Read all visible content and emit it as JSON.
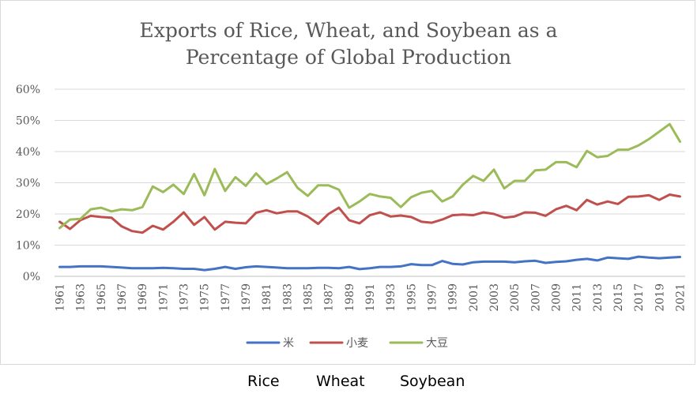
{
  "chart_data": {
    "type": "line",
    "title_lines": [
      "Exports of Rice, Wheat, and Soybean as a",
      "Percentage of Global Production"
    ],
    "y_ticks": [
      "0%",
      "10%",
      "20%",
      "30%",
      "40%",
      "50%",
      "60%"
    ],
    "ylim": [
      0,
      60
    ],
    "grid": true,
    "legend_position": "bottom",
    "x_tick_labels": [
      "1961",
      "1963",
      "1965",
      "1967",
      "1969",
      "1971",
      "1973",
      "1975",
      "1977",
      "1979",
      "1981",
      "1983",
      "1985",
      "1987",
      "1989",
      "1991",
      "1993",
      "1995",
      "1997",
      "1999",
      "2001",
      "2003",
      "2005",
      "2007",
      "2009",
      "2011",
      "2013",
      "2015",
      "2017",
      "2019",
      "2021"
    ],
    "x": [
      1961,
      1962,
      1963,
      1964,
      1965,
      1966,
      1967,
      1968,
      1969,
      1970,
      1971,
      1972,
      1973,
      1974,
      1975,
      1976,
      1977,
      1978,
      1979,
      1980,
      1981,
      1982,
      1983,
      1984,
      1985,
      1986,
      1987,
      1988,
      1989,
      1990,
      1991,
      1992,
      1993,
      1994,
      1995,
      1996,
      1997,
      1998,
      1999,
      2000,
      2001,
      2002,
      2003,
      2004,
      2005,
      2006,
      2007,
      2008,
      2009,
      2010,
      2011,
      2012,
      2013,
      2014,
      2015,
      2016,
      2017,
      2018,
      2019,
      2020,
      2021
    ],
    "series": [
      {
        "name": "米",
        "color": "#4472c4",
        "values": [
          3.0,
          3.0,
          3.2,
          3.2,
          3.2,
          3.0,
          2.8,
          2.6,
          2.6,
          2.6,
          2.7,
          2.6,
          2.4,
          2.4,
          2.0,
          2.4,
          3.0,
          2.4,
          2.9,
          3.2,
          3.0,
          2.8,
          2.6,
          2.6,
          2.6,
          2.7,
          2.7,
          2.6,
          3.0,
          2.3,
          2.6,
          3.0,
          3.0,
          3.2,
          3.9,
          3.6,
          3.6,
          4.9,
          4.0,
          3.8,
          4.5,
          4.7,
          4.7,
          4.7,
          4.5,
          4.8,
          5.0,
          4.3,
          4.6,
          4.8,
          5.3,
          5.6,
          5.1,
          6.0,
          5.8,
          5.6,
          6.3,
          6.0,
          5.8,
          6.0,
          6.2
        ]
      },
      {
        "name": "小麦",
        "color": "#c0504d",
        "values": [
          17.5,
          15.2,
          18.0,
          19.4,
          19.0,
          18.8,
          16.0,
          14.5,
          14.0,
          16.2,
          15.0,
          17.5,
          20.5,
          16.5,
          19.0,
          15.0,
          17.5,
          17.2,
          17.0,
          20.4,
          21.2,
          20.2,
          20.8,
          20.8,
          19.2,
          16.8,
          20.0,
          22.0,
          18.0,
          17.0,
          19.6,
          20.5,
          19.2,
          19.5,
          19.0,
          17.5,
          17.2,
          18.2,
          19.6,
          19.8,
          19.6,
          20.5,
          20.0,
          18.8,
          19.2,
          20.5,
          20.4,
          19.4,
          21.5,
          22.6,
          21.2,
          24.5,
          23.0,
          24.0,
          23.2,
          25.5,
          25.6,
          26.0,
          24.5,
          26.2,
          25.6
        ]
      },
      {
        "name": "大豆",
        "color": "#9bbb59",
        "values": [
          15.5,
          18.2,
          18.4,
          21.5,
          22.0,
          20.8,
          21.5,
          21.2,
          22.2,
          28.8,
          27.0,
          29.4,
          26.4,
          32.8,
          26.0,
          34.4,
          27.4,
          31.8,
          29.0,
          33.0,
          29.6,
          31.4,
          33.4,
          28.4,
          25.8,
          29.2,
          29.2,
          27.8,
          22.0,
          24.0,
          26.4,
          25.6,
          25.2,
          22.2,
          25.4,
          26.8,
          27.4,
          24.0,
          25.6,
          29.4,
          32.2,
          30.6,
          34.2,
          28.2,
          30.6,
          30.6,
          34.0,
          34.2,
          36.6,
          36.6,
          35.0,
          40.2,
          38.2,
          38.6,
          40.6,
          40.6,
          42.0,
          44.0,
          46.4,
          48.8,
          43.2
        ]
      }
    ]
  },
  "captions": {
    "rice": "Rice",
    "wheat": "Wheat",
    "soybean": "Soybean"
  }
}
